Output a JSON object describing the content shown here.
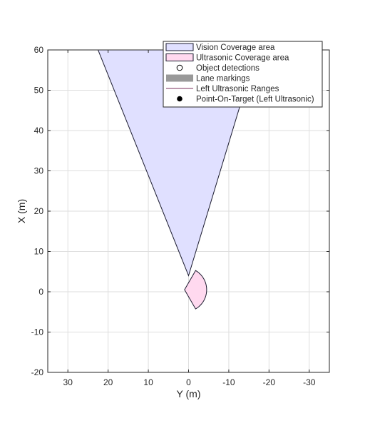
{
  "chart_data": {
    "type": "area",
    "xlabel": "Y (m)",
    "ylabel": "X (m)",
    "xlim": [
      35,
      -35
    ],
    "ylim": [
      -20,
      60
    ],
    "x_reversed": true,
    "grid": true,
    "x_ticks": [
      30,
      20,
      10,
      0,
      -10,
      -20,
      -30
    ],
    "y_ticks": [
      60,
      50,
      40,
      30,
      20,
      10,
      0,
      -10,
      -20
    ],
    "legend_position": "top-right",
    "legend": [
      {
        "label": "Vision Coverage area",
        "symbol": "patch",
        "color": "#e0e0ff"
      },
      {
        "label": "Ultrasonic Coverage area",
        "symbol": "patch",
        "color": "#ffd9ef"
      },
      {
        "label": "Object detections",
        "symbol": "open-circle",
        "color": "#000000"
      },
      {
        "label": "Lane markings",
        "symbol": "thick-line",
        "color": "#999999"
      },
      {
        "label": "Left Ultrasonic Ranges",
        "symbol": "line",
        "color": "#7b2f5e"
      },
      {
        "label": "Point-On-Target (Left Ultrasonic)",
        "symbol": "filled-circle",
        "color": "#000000"
      }
    ],
    "series": [
      {
        "name": "Vision Coverage area",
        "kind": "polygon",
        "fill": "#e0e0ff",
        "stroke": "#1a1a2e",
        "points": [
          [
            0,
            4
          ],
          [
            22.5,
            60
          ],
          [
            -17,
            60
          ],
          [
            0,
            4
          ]
        ]
      },
      {
        "name": "Ultrasonic Coverage area",
        "kind": "sector",
        "fill": "#ffd9ef",
        "stroke": "#1a1a2e",
        "center": [
          1,
          0.5
        ],
        "radius": 5.5,
        "start_deg": 120,
        "end_deg": 240
      }
    ]
  }
}
